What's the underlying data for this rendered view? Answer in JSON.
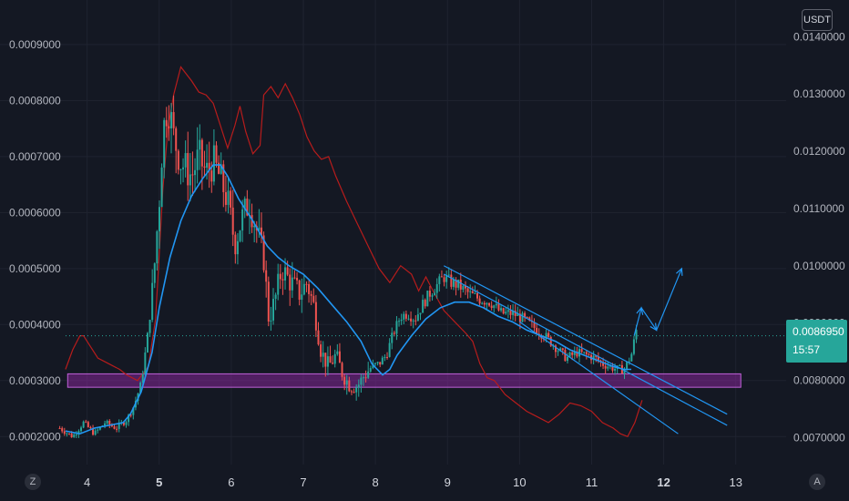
{
  "chart_data": {
    "type": "candlestick",
    "title": "",
    "xlabel": "",
    "ylabel": "",
    "quote_unit": "USDT",
    "x_ticks": [
      "4",
      "5",
      "6",
      "7",
      "8",
      "9",
      "10",
      "11",
      "12",
      "13"
    ],
    "x_bold_ticks": [
      "5",
      "12"
    ],
    "x_range": [
      3.6,
      13.8
    ],
    "left_axis": {
      "ticks": [
        "0.0009000",
        "0.0008000",
        "0.0007000",
        "0.0006000",
        "0.0005000",
        "0.0004000",
        "0.0003000",
        "0.0002000"
      ],
      "ylim": [
        0.00015,
        0.00096
      ]
    },
    "right_axis": {
      "ticks": [
        "0.0140000",
        "0.0130000",
        "0.0120000",
        "0.0110000",
        "0.0100000",
        "0.0090000",
        "0.0080000",
        "0.0070000"
      ],
      "ylim": [
        0.00653,
        0.01445
      ]
    },
    "current_price": {
      "value": "0.0086950",
      "countdown": "15:57",
      "y_left": 0.00038
    },
    "moving_average": {
      "name": "",
      "color": "#2196f3",
      "points": [
        [
          3.7,
          0.00021
        ],
        [
          3.9,
          0.000205
        ],
        [
          4.1,
          0.000215
        ],
        [
          4.3,
          0.00022
        ],
        [
          4.5,
          0.000225
        ],
        [
          4.6,
          0.00024
        ],
        [
          4.75,
          0.00028
        ],
        [
          4.9,
          0.00035
        ],
        [
          5.0,
          0.00043
        ],
        [
          5.15,
          0.00052
        ],
        [
          5.3,
          0.000585
        ],
        [
          5.45,
          0.00063
        ],
        [
          5.6,
          0.00066
        ],
        [
          5.75,
          0.000685
        ],
        [
          5.85,
          0.000685
        ],
        [
          5.95,
          0.000665
        ],
        [
          6.1,
          0.000625
        ],
        [
          6.3,
          0.000585
        ],
        [
          6.5,
          0.00054
        ],
        [
          6.65,
          0.00052
        ],
        [
          6.8,
          0.000505
        ],
        [
          7.0,
          0.00049
        ],
        [
          7.2,
          0.000465
        ],
        [
          7.4,
          0.000435
        ],
        [
          7.6,
          0.000405
        ],
        [
          7.8,
          0.00037
        ],
        [
          7.95,
          0.00033
        ],
        [
          8.1,
          0.00031
        ],
        [
          8.2,
          0.00032
        ],
        [
          8.3,
          0.000345
        ],
        [
          8.5,
          0.00038
        ],
        [
          8.7,
          0.00041
        ],
        [
          8.9,
          0.00043
        ],
        [
          9.1,
          0.00044
        ],
        [
          9.3,
          0.00044
        ],
        [
          9.5,
          0.00043
        ],
        [
          9.7,
          0.000415
        ],
        [
          9.9,
          0.000405
        ],
        [
          10.1,
          0.00039
        ],
        [
          10.3,
          0.00038
        ],
        [
          10.5,
          0.00037
        ],
        [
          10.7,
          0.000355
        ],
        [
          10.9,
          0.000345
        ],
        [
          11.1,
          0.000335
        ],
        [
          11.3,
          0.000325
        ],
        [
          11.45,
          0.00032
        ],
        [
          11.55,
          0.00032
        ]
      ]
    },
    "compare_series": {
      "name": "",
      "color": "#b71c1c",
      "points": [
        [
          3.7,
          0.00032
        ],
        [
          3.8,
          0.000355
        ],
        [
          3.9,
          0.00038
        ],
        [
          3.95,
          0.00038
        ],
        [
          4.05,
          0.00036
        ],
        [
          4.15,
          0.00034
        ],
        [
          4.3,
          0.00033
        ],
        [
          4.45,
          0.00032
        ],
        [
          4.55,
          0.00031
        ],
        [
          4.7,
          0.0003
        ],
        [
          4.85,
          0.000325
        ],
        [
          4.95,
          0.00041
        ],
        [
          5.05,
          0.00064
        ],
        [
          5.12,
          0.00075
        ],
        [
          5.2,
          0.00081
        ],
        [
          5.3,
          0.00086
        ],
        [
          5.45,
          0.000835
        ],
        [
          5.55,
          0.000815
        ],
        [
          5.65,
          0.00081
        ],
        [
          5.75,
          0.000795
        ],
        [
          5.85,
          0.000755
        ],
        [
          5.95,
          0.000715
        ],
        [
          6.05,
          0.000755
        ],
        [
          6.12,
          0.00079
        ],
        [
          6.2,
          0.000745
        ],
        [
          6.3,
          0.000705
        ],
        [
          6.4,
          0.00072
        ],
        [
          6.45,
          0.00081
        ],
        [
          6.55,
          0.000825
        ],
        [
          6.65,
          0.000805
        ],
        [
          6.75,
          0.00083
        ],
        [
          6.85,
          0.000805
        ],
        [
          6.95,
          0.000775
        ],
        [
          7.05,
          0.000735
        ],
        [
          7.15,
          0.00071
        ],
        [
          7.25,
          0.000695
        ],
        [
          7.35,
          0.0007
        ],
        [
          7.45,
          0.000665
        ],
        [
          7.6,
          0.00062
        ],
        [
          7.75,
          0.00058
        ],
        [
          7.9,
          0.00054
        ],
        [
          8.05,
          0.0005
        ],
        [
          8.2,
          0.000475
        ],
        [
          8.35,
          0.000505
        ],
        [
          8.5,
          0.00049
        ],
        [
          8.6,
          0.00046
        ],
        [
          8.7,
          0.000485
        ],
        [
          8.8,
          0.00046
        ],
        [
          8.95,
          0.000425
        ],
        [
          9.1,
          0.000405
        ],
        [
          9.25,
          0.000385
        ],
        [
          9.35,
          0.00037
        ],
        [
          9.45,
          0.00033
        ],
        [
          9.55,
          0.000305
        ],
        [
          9.65,
          0.0003
        ],
        [
          9.8,
          0.000275
        ],
        [
          9.95,
          0.00026
        ],
        [
          10.1,
          0.000245
        ],
        [
          10.25,
          0.000235
        ],
        [
          10.4,
          0.000225
        ],
        [
          10.55,
          0.00024
        ],
        [
          10.7,
          0.00026
        ],
        [
          10.85,
          0.000255
        ],
        [
          11.0,
          0.000245
        ],
        [
          11.15,
          0.000225
        ],
        [
          11.3,
          0.000215
        ],
        [
          11.4,
          0.000205
        ],
        [
          11.5,
          0.0002
        ],
        [
          11.6,
          0.000225
        ],
        [
          11.7,
          0.000265
        ]
      ]
    },
    "candle_path": [
      [
        3.62,
        0.000215
      ],
      [
        3.8,
        0.0002
      ],
      [
        3.95,
        0.000225
      ],
      [
        4.1,
        0.000205
      ],
      [
        4.25,
        0.000225
      ],
      [
        4.4,
        0.000215
      ],
      [
        4.55,
        0.00023
      ],
      [
        4.65,
        0.000255
      ],
      [
        4.75,
        0.000295
      ],
      [
        4.85,
        0.00039
      ],
      [
        4.92,
        0.00048
      ],
      [
        5.0,
        0.00062
      ],
      [
        5.05,
        0.00074
      ],
      [
        5.12,
        0.0008
      ],
      [
        5.2,
        0.000735
      ],
      [
        5.3,
        0.00069
      ],
      [
        5.45,
        0.000665
      ],
      [
        5.55,
        0.0007
      ],
      [
        5.65,
        0.00067
      ],
      [
        5.75,
        0.00069
      ],
      [
        5.85,
        0.00066
      ],
      [
        5.95,
        0.00062
      ],
      [
        6.05,
        0.000545
      ],
      [
        6.15,
        0.00059
      ],
      [
        6.25,
        0.00062
      ],
      [
        6.35,
        0.00057
      ],
      [
        6.45,
        0.00052
      ],
      [
        6.52,
        0.00041
      ],
      [
        6.6,
        0.00044
      ],
      [
        6.7,
        0.0005
      ],
      [
        6.8,
        0.00048
      ],
      [
        6.95,
        0.000455
      ],
      [
        7.05,
        0.000475
      ],
      [
        7.15,
        0.00043
      ],
      [
        7.25,
        0.00035
      ],
      [
        7.35,
        0.000325
      ],
      [
        7.45,
        0.000345
      ],
      [
        7.55,
        0.00031
      ],
      [
        7.65,
        0.00029
      ],
      [
        7.75,
        0.00029
      ],
      [
        7.85,
        0.00031
      ],
      [
        7.95,
        0.000325
      ],
      [
        8.05,
        0.00033
      ],
      [
        8.15,
        0.000345
      ],
      [
        8.25,
        0.000385
      ],
      [
        8.35,
        0.000415
      ],
      [
        8.45,
        0.00042
      ],
      [
        8.55,
        0.00041
      ],
      [
        8.65,
        0.000435
      ],
      [
        8.75,
        0.000455
      ],
      [
        8.85,
        0.00047
      ],
      [
        8.95,
        0.000485
      ],
      [
        9.05,
        0.000475
      ],
      [
        9.15,
        0.00047
      ],
      [
        9.3,
        0.000455
      ],
      [
        9.45,
        0.000445
      ],
      [
        9.6,
        0.00044
      ],
      [
        9.75,
        0.00042
      ],
      [
        9.9,
        0.00042
      ],
      [
        10.05,
        0.00041
      ],
      [
        10.2,
        0.000395
      ],
      [
        10.35,
        0.00038
      ],
      [
        10.5,
        0.00036
      ],
      [
        10.65,
        0.00034
      ],
      [
        10.8,
        0.00035
      ],
      [
        10.95,
        0.000345
      ],
      [
        11.05,
        0.00034
      ],
      [
        11.15,
        0.00033
      ],
      [
        11.25,
        0.000325
      ],
      [
        11.35,
        0.00032
      ],
      [
        11.45,
        0.00032
      ],
      [
        11.55,
        0.000345
      ],
      [
        11.62,
        0.00039
      ]
    ],
    "candle_colors": {
      "up": "#26a69a",
      "down": "#ef5350"
    },
    "support_zone": {
      "x_start": 3.73,
      "x_end": 13.07,
      "y_top": 0.000312,
      "y_bottom": 0.000288,
      "color": "#9c27b0"
    },
    "channel_lines": [
      {
        "x1": 8.95,
        "y1": 0.000505,
        "x2": 12.88,
        "y2": 0.00024
      },
      {
        "x1": 8.95,
        "y1": 0.00049,
        "x2": 12.88,
        "y2": 0.00022
      },
      {
        "x1": 10.0,
        "y1": 0.000405,
        "x2": 12.2,
        "y2": 0.000205
      }
    ],
    "projection_path": [
      [
        11.59,
        0.00038
      ],
      [
        11.69,
        0.00043
      ],
      [
        11.9,
        0.00039
      ],
      [
        12.25,
        0.0005
      ]
    ],
    "line_color": "#2196f3"
  }
}
